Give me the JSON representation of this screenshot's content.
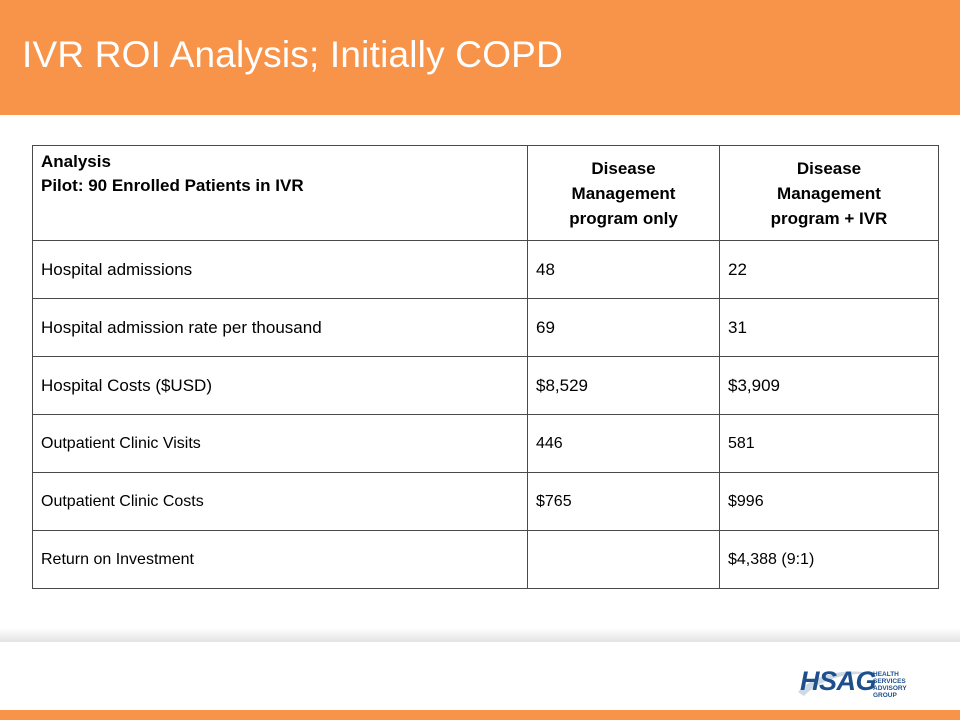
{
  "slide": {
    "title": "IVR ROI Analysis; Initially COPD"
  },
  "table": {
    "header": {
      "analysis_label": "Analysis",
      "pilot_label": "Pilot:  90 Enrolled Patients in IVR",
      "col2_line1": "Disease",
      "col2_line2": "Management",
      "col2_line3": "program only",
      "col3_line1": "Disease",
      "col3_line2": "Management",
      "col3_line3": "program + IVR"
    },
    "rows": [
      {
        "label": "Hospital admissions",
        "dm_only": "48",
        "dm_ivr": "22"
      },
      {
        "label": "Hospital admission rate per thousand",
        "dm_only": "69",
        "dm_ivr": "31"
      },
      {
        "label": "Hospital Costs ($USD)",
        "dm_only": "$8,529",
        "dm_ivr": "$3,909"
      },
      {
        "label": "Outpatient Clinic Visits",
        "dm_only": "446",
        "dm_ivr": "581"
      },
      {
        "label": "Outpatient Clinic Costs",
        "dm_only": "$765",
        "dm_ivr": "$996"
      },
      {
        "label": "Return on Investment",
        "dm_only": "",
        "dm_ivr": "$4,388 (9:1)"
      }
    ]
  },
  "footer": {
    "logo_text": "HSAG",
    "logo_sub1": "HEALTH SERVICES",
    "logo_sub2": "ADVISORY GROUP"
  },
  "colors": {
    "accent": "#f7944a",
    "logo_blue": "#1d4f8c"
  }
}
